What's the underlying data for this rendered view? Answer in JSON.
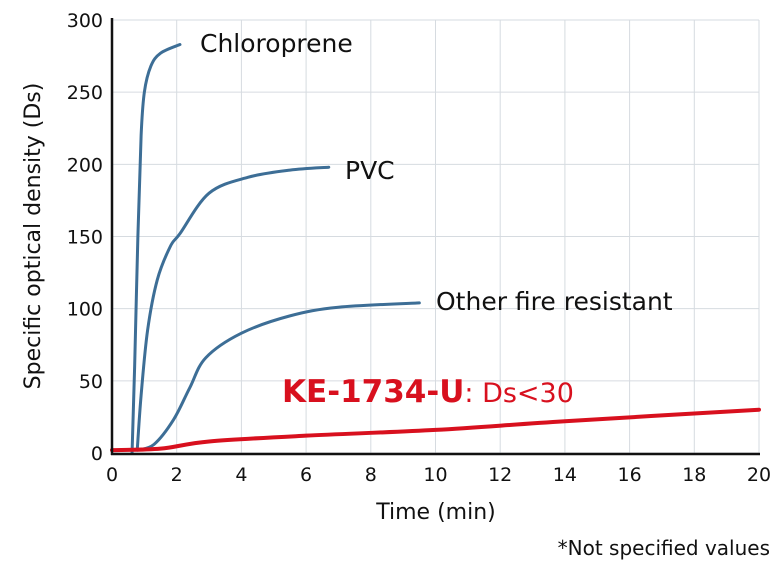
{
  "chart_data": {
    "type": "line",
    "title": "",
    "xlabel": "Time (min)",
    "ylabel": "Specific optical density (Ds)",
    "xlim": [
      0,
      20
    ],
    "ylim": [
      0,
      300
    ],
    "xticks": [
      "0",
      "2",
      "4",
      "6",
      "8",
      "10",
      "12",
      "14",
      "16",
      "18",
      "20"
    ],
    "yticks": [
      "0",
      "50",
      "100",
      "150",
      "200",
      "250",
      "300"
    ],
    "grid": true,
    "series": [
      {
        "name": "Chloroprene",
        "color": "#3d6e96",
        "x": [
          0.62,
          0.7,
          0.8,
          0.9,
          1.0,
          1.2,
          1.5,
          2.1
        ],
        "y": [
          0,
          60,
          150,
          220,
          250,
          268,
          277,
          283
        ]
      },
      {
        "name": "PVC",
        "color": "#3d6e96",
        "x": [
          0.78,
          0.9,
          1.1,
          1.4,
          1.8,
          2.1,
          3.0,
          4.2,
          5.5,
          6.7
        ],
        "y": [
          2,
          40,
          85,
          120,
          143,
          152,
          180,
          191,
          196,
          198
        ]
      },
      {
        "name": "Other fire resistant",
        "color": "#3d6e96",
        "x": [
          0.8,
          1.3,
          1.9,
          2.4,
          2.9,
          4.0,
          5.5,
          7.0,
          9.5
        ],
        "y": [
          2,
          6,
          23,
          45,
          66,
          83,
          95,
          101,
          104
        ]
      },
      {
        "name": "KE-1734-U",
        "color": "#d8101e",
        "x": [
          0,
          1.5,
          3,
          6,
          10,
          14,
          20
        ],
        "y": [
          2,
          3,
          8,
          12,
          16,
          22,
          30
        ]
      }
    ],
    "annotations": {
      "ke_suffix": ": Ds<30",
      "footnote": "*Not specified values"
    }
  }
}
